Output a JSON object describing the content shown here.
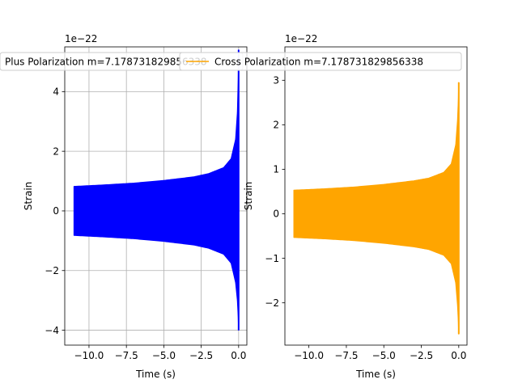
{
  "chart_data": [
    {
      "type": "line",
      "title": "",
      "xlabel": "Time (s)",
      "ylabel": "Strain",
      "offset_text": "1e−22",
      "legend": {
        "label": "Plus Polarization m=7.178731829856338",
        "placement": "top-right"
      },
      "grid": true,
      "xlim": [
        -11.62,
        0.55
      ],
      "ylim": [
        -4.5,
        5.5
      ],
      "xticks": [
        -10.0,
        -7.5,
        -5.0,
        -2.5,
        0.0
      ],
      "xtick_labels": [
        "−10.0",
        "−7.5",
        "−5.0",
        "−2.5",
        "0.0"
      ],
      "yticks": [
        -4,
        -2,
        0,
        2,
        4
      ],
      "ytick_labels": [
        "−4",
        "−2",
        "0",
        "2",
        "4"
      ],
      "series": [
        {
          "name": "Plus Polarization m=7.178731829856338",
          "color": "#0000ff",
          "t_start": -11.0,
          "t_end": 0.0,
          "envelope_upper": [
            [
              -11.0,
              0.82
            ],
            [
              -9.0,
              0.87
            ],
            [
              -7.0,
              0.93
            ],
            [
              -5.0,
              1.02
            ],
            [
              -3.0,
              1.14
            ],
            [
              -2.0,
              1.25
            ],
            [
              -1.0,
              1.45
            ],
            [
              -0.5,
              1.75
            ],
            [
              -0.2,
              2.4
            ],
            [
              -0.08,
              3.3
            ],
            [
              -0.02,
              4.5
            ],
            [
              0.0,
              5.4
            ]
          ],
          "envelope_lower": [
            [
              -11.0,
              -0.82
            ],
            [
              -9.0,
              -0.87
            ],
            [
              -7.0,
              -0.93
            ],
            [
              -5.0,
              -1.02
            ],
            [
              -3.0,
              -1.14
            ],
            [
              -2.0,
              -1.25
            ],
            [
              -1.0,
              -1.45
            ],
            [
              -0.5,
              -1.75
            ],
            [
              -0.2,
              -2.4
            ],
            [
              -0.08,
              -3.0
            ],
            [
              -0.02,
              -3.6
            ],
            [
              0.0,
              -4.0
            ]
          ]
        }
      ]
    },
    {
      "type": "line",
      "title": "",
      "xlabel": "Time (s)",
      "ylabel": "Strain",
      "offset_text": "1e−22",
      "legend": {
        "label": "Cross Polarization m=7.178731829856338",
        "placement": "top-right"
      },
      "grid": false,
      "xlim": [
        -11.6,
        0.55
      ],
      "ylim": [
        -2.95,
        3.75
      ],
      "xticks": [
        -10.0,
        -7.5,
        -5.0,
        -2.5,
        0.0
      ],
      "xtick_labels": [
        "−10.0",
        "−7.5",
        "−5.0",
        "−2.5",
        "0.0"
      ],
      "yticks": [
        -2,
        -1,
        0,
        1,
        2,
        3
      ],
      "ytick_labels": [
        "−2",
        "−1",
        "0",
        "1",
        "2",
        "3"
      ],
      "series": [
        {
          "name": "Cross Polarization m=7.178731829856338",
          "color": "#ffa500",
          "t_start": -11.0,
          "t_end": 0.0,
          "envelope_upper": [
            [
              -11.0,
              0.53
            ],
            [
              -9.0,
              0.56
            ],
            [
              -7.0,
              0.6
            ],
            [
              -5.0,
              0.66
            ],
            [
              -3.0,
              0.74
            ],
            [
              -2.0,
              0.8
            ],
            [
              -1.0,
              0.93
            ],
            [
              -0.5,
              1.12
            ],
            [
              -0.2,
              1.55
            ],
            [
              -0.08,
              2.1
            ],
            [
              -0.02,
              2.6
            ],
            [
              0.0,
              2.95
            ]
          ],
          "envelope_lower": [
            [
              -11.0,
              -0.53
            ],
            [
              -9.0,
              -0.56
            ],
            [
              -7.0,
              -0.6
            ],
            [
              -5.0,
              -0.66
            ],
            [
              -3.0,
              -0.74
            ],
            [
              -2.0,
              -0.8
            ],
            [
              -1.0,
              -0.93
            ],
            [
              -0.5,
              -1.12
            ],
            [
              -0.2,
              -1.55
            ],
            [
              -0.08,
              -2.05
            ],
            [
              -0.02,
              -2.45
            ],
            [
              0.0,
              -2.7
            ]
          ]
        }
      ]
    }
  ]
}
